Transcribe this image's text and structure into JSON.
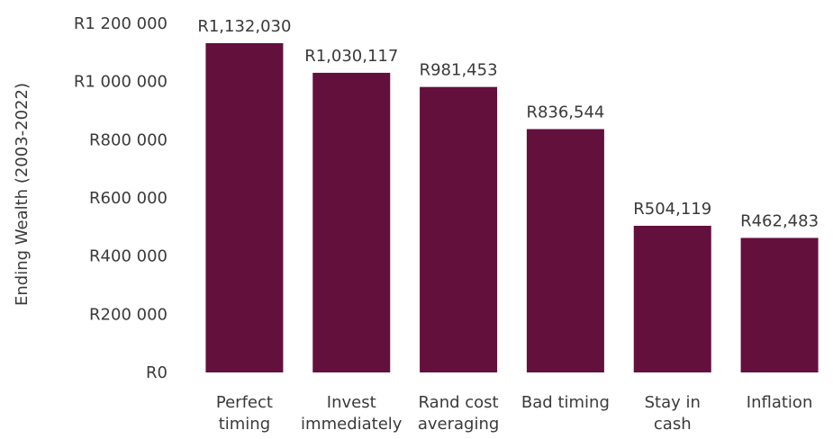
{
  "chart_data": {
    "type": "bar",
    "categories": [
      [
        "Perfect",
        "timing"
      ],
      [
        "Invest",
        "immediately"
      ],
      [
        "Rand cost",
        "averaging"
      ],
      [
        "Bad timing"
      ],
      [
        "Stay in",
        "cash"
      ],
      [
        "Inflation"
      ]
    ],
    "values": [
      1132030,
      1030117,
      981453,
      836544,
      504119,
      462483
    ],
    "data_labels": [
      "R1,132,030",
      "R1,030,117",
      "R981,453",
      "R836,544",
      "R504,119",
      "R462,483"
    ],
    "title": "",
    "xlabel": "",
    "ylabel": "Ending Wealth (2003-2022)",
    "ylim": [
      0,
      1200000
    ],
    "yticks": [
      0,
      200000,
      400000,
      600000,
      800000,
      1000000,
      1200000
    ],
    "ytick_labels": [
      "R0",
      "R200 000",
      "R400 000",
      "R600 000",
      "R800 000",
      "R1 000 000",
      "R1 200 000"
    ],
    "bar_color": "#63103d",
    "grid": false,
    "legend": "none"
  }
}
